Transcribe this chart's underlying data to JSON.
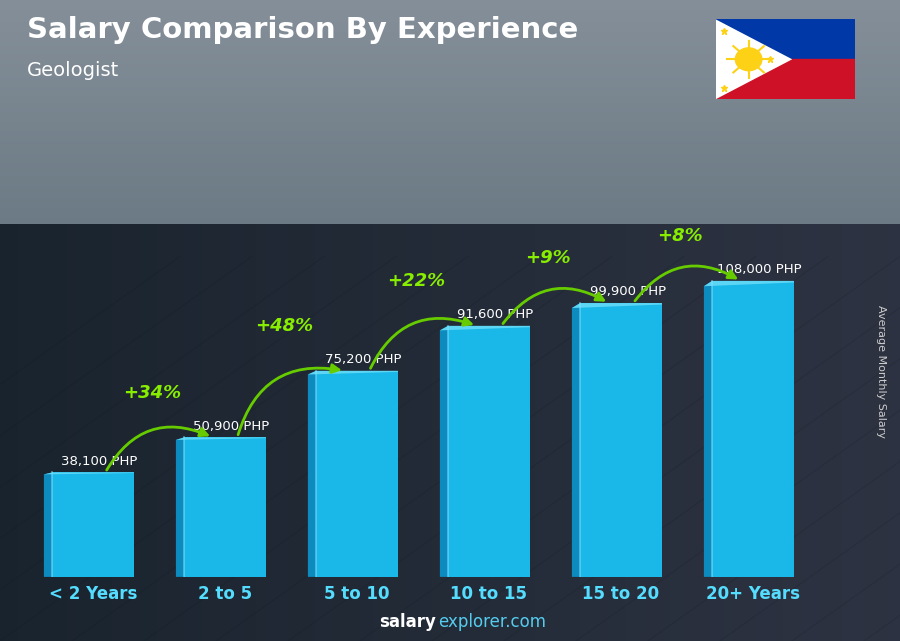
{
  "title": "Salary Comparison By Experience",
  "subtitle": "Geologist",
  "ylabel": "Average Monthly Salary",
  "watermark_bold": "salary",
  "watermark_light": "explorer.com",
  "categories": [
    "< 2 Years",
    "2 to 5",
    "5 to 10",
    "10 to 15",
    "15 to 20",
    "20+ Years"
  ],
  "values": [
    38100,
    50900,
    75200,
    91600,
    99900,
    108000
  ],
  "value_labels": [
    "38,100 PHP",
    "50,900 PHP",
    "75,200 PHP",
    "91,600 PHP",
    "99,900 PHP",
    "108,000 PHP"
  ],
  "pct_labels": [
    "+34%",
    "+48%",
    "+22%",
    "+9%",
    "+8%"
  ],
  "bar_main_color": "#1ab8e8",
  "bar_left_color": "#0d8bbf",
  "bar_top_color": "#5dd6f5",
  "bar_highlight_color": "#80e0ff",
  "title_color": "#ffffff",
  "subtitle_color": "#ffffff",
  "value_label_color": "#ffffff",
  "pct_label_color": "#88ee00",
  "arrow_color": "#66cc00",
  "cat_label_color": "#55ddff",
  "bg_top_color": "#6a8090",
  "bg_mid_color": "#3a4a55",
  "bg_bot_color": "#1a2530",
  "ylim": [
    0,
    145000
  ],
  "bar_width": 0.62,
  "bar_gap": 0.38
}
